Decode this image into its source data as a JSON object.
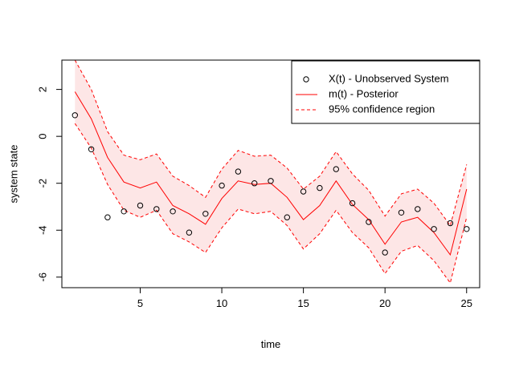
{
  "chart_data": {
    "type": "line",
    "xlabel": "time",
    "ylabel": "system state",
    "xlim": [
      0.2,
      25.8
    ],
    "ylim": [
      -6.45,
      3.25
    ],
    "xticks": [
      5,
      10,
      15,
      20,
      25
    ],
    "yticks": [
      -6,
      -4,
      -2,
      0,
      2
    ],
    "x": [
      1,
      2,
      3,
      4,
      5,
      6,
      7,
      8,
      9,
      10,
      11,
      12,
      13,
      14,
      15,
      16,
      17,
      18,
      19,
      20,
      21,
      22,
      23,
      24,
      25
    ],
    "observed": [
      0.9,
      -0.55,
      -3.45,
      -3.2,
      -2.95,
      -3.1,
      -3.2,
      -4.1,
      -3.3,
      -2.1,
      -1.5,
      -2.0,
      -1.9,
      -3.45,
      -2.35,
      -2.2,
      -1.4,
      -2.85,
      -3.65,
      -4.95,
      -3.25,
      -3.1,
      -3.95,
      -3.7,
      -3.95
    ],
    "posterior": [
      1.9,
      0.75,
      -0.9,
      -1.95,
      -2.2,
      -1.95,
      -2.95,
      -3.3,
      -3.75,
      -2.65,
      -1.9,
      -2.05,
      -2.0,
      -2.6,
      -3.55,
      -2.95,
      -1.9,
      -2.9,
      -3.55,
      -4.6,
      -3.65,
      -3.45,
      -4.1,
      -5.05,
      -2.25
    ],
    "upper": [
      3.25,
      2.0,
      0.2,
      -0.8,
      -1.0,
      -0.75,
      -1.7,
      -2.1,
      -2.6,
      -1.4,
      -0.6,
      -0.85,
      -0.8,
      -1.35,
      -2.25,
      -1.7,
      -0.65,
      -1.6,
      -2.3,
      -3.4,
      -2.45,
      -2.25,
      -2.85,
      -3.8,
      -1.2
    ],
    "lower": [
      0.55,
      -0.5,
      -2.05,
      -3.15,
      -3.45,
      -3.15,
      -4.15,
      -4.5,
      -4.95,
      -3.9,
      -3.1,
      -3.3,
      -3.2,
      -3.8,
      -4.8,
      -4.15,
      -3.15,
      -4.1,
      -4.75,
      -5.85,
      -4.9,
      -4.65,
      -5.3,
      -6.25,
      -3.45
    ],
    "legend": {
      "position": "top-right",
      "entries": [
        {
          "label": "X(t) - Unobserved System",
          "marker": "circle"
        },
        {
          "label": "m(t) - Posterior",
          "marker": "line"
        },
        {
          "label": "95% confidence region",
          "marker": "dashed"
        }
      ]
    },
    "colors": {
      "posterior": "#ff0000",
      "band_fill": "#fde6e6",
      "points": "#000000",
      "axis": "#000000"
    },
    "grid": false
  }
}
